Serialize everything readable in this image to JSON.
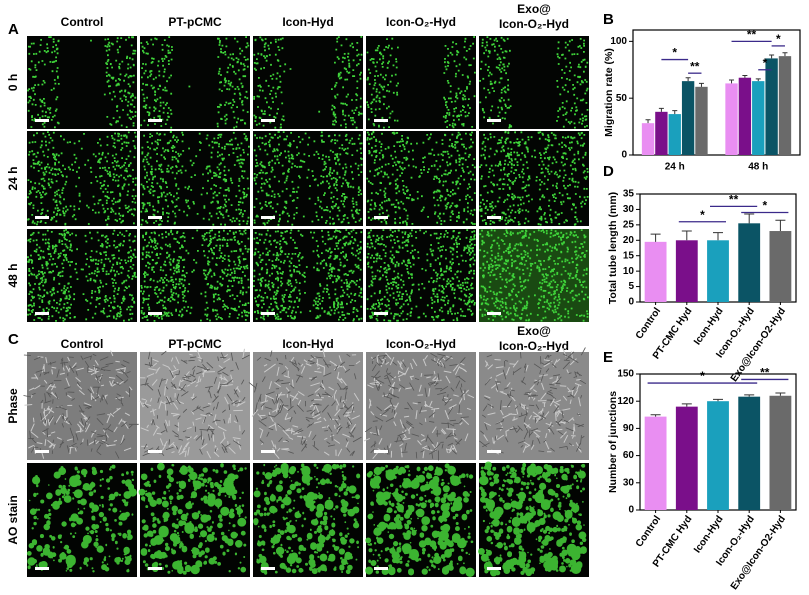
{
  "panel_labels": [
    "A",
    "B",
    "C",
    "D",
    "E"
  ],
  "section_a": {
    "columns": [
      "Control",
      "PT-pCMC",
      "Icon-Hyd",
      "Icon-O₂-Hyd",
      [
        "Exo@",
        "Icon-O₂-Hyd"
      ]
    ],
    "rows": [
      "0 h",
      "24 h",
      "48 h"
    ]
  },
  "section_c": {
    "columns": [
      "Control",
      "PT-pCMC",
      "Icon-Hyd",
      "Icon-O₂-Hyd",
      [
        "Exo@",
        "Icon-O₂-Hyd"
      ]
    ],
    "rows": [
      "Phase",
      "AO stain"
    ]
  },
  "chart_data": [
    {
      "type": "grouped-bar",
      "ylabel": "Migration rate (%)",
      "categories": [
        "24 h",
        "48 h"
      ],
      "ylim": [
        0,
        110
      ],
      "yticks": [
        0,
        50,
        100
      ],
      "series": [
        {
          "color": "#e98ef2",
          "values": [
            28,
            63
          ],
          "errors": [
            3,
            3
          ]
        },
        {
          "color": "#7a0f8a",
          "values": [
            38,
            68
          ],
          "errors": [
            3,
            2
          ]
        },
        {
          "color": "#1aa0bd",
          "values": [
            36,
            65
          ],
          "errors": [
            3,
            2
          ]
        },
        {
          "color": "#0b5465",
          "values": [
            65,
            85
          ],
          "errors": [
            3,
            3
          ]
        },
        {
          "color": "#6a6a6a",
          "values": [
            60,
            87
          ],
          "errors": [
            3,
            3
          ]
        }
      ],
      "annotations": [
        "*",
        "**",
        "**",
        "*",
        "*"
      ]
    },
    {
      "type": "bar",
      "ylabel": "Total tube length (mm)",
      "categories": [
        "Control",
        "PT-CMC Hyd",
        "Icon-Hyd",
        "Icon-O₂-Hyd",
        "Exo@Icon-O2-Hyd"
      ],
      "values": [
        19.5,
        20,
        20,
        25.5,
        23
      ],
      "errors": [
        2.5,
        3,
        2.5,
        3,
        3.5
      ],
      "colors": [
        "#e98ef2",
        "#7a0f8a",
        "#1aa0bd",
        "#0b5465",
        "#6a6a6a"
      ],
      "ylim": [
        0,
        35
      ],
      "yticks": [
        0,
        5,
        10,
        15,
        20,
        25,
        30,
        35
      ],
      "annotations": [
        "*",
        "**",
        "*"
      ]
    },
    {
      "type": "bar",
      "ylabel": "Number of junctions",
      "categories": [
        "Control",
        "PT-CMC Hyd",
        "Icon-Hyd",
        "Icon-O₂-Hyd",
        "Exo@Icon-O2-Hyd"
      ],
      "values": [
        103,
        114,
        120,
        125,
        126
      ],
      "errors": [
        2,
        3,
        2,
        2,
        3
      ],
      "colors": [
        "#e98ef2",
        "#7a0f8a",
        "#1aa0bd",
        "#0b5465",
        "#6a6a6a"
      ],
      "ylim": [
        0,
        150
      ],
      "yticks": [
        0,
        30,
        60,
        90,
        120,
        150
      ],
      "annotations": [
        "*",
        "**"
      ]
    }
  ]
}
